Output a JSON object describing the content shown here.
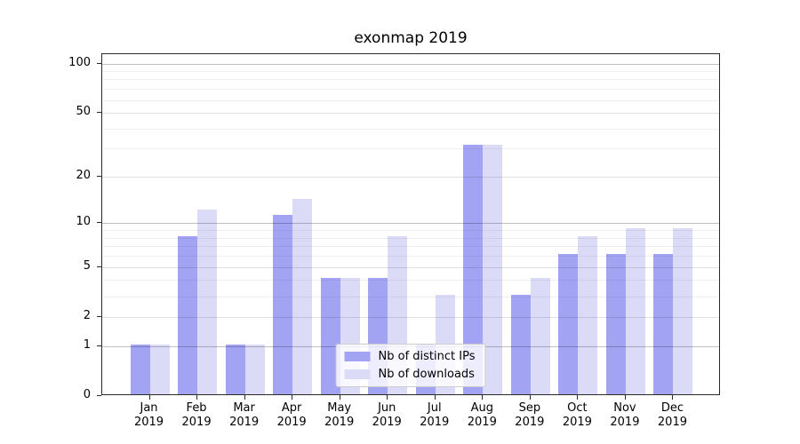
{
  "chart_data": {
    "type": "bar",
    "title": "exonmap 2019",
    "categories": [
      "Jan",
      "Feb",
      "Mar",
      "Apr",
      "May",
      "Jun",
      "Jul",
      "Aug",
      "Sep",
      "Oct",
      "Nov",
      "Dec"
    ],
    "year": "2019",
    "series": [
      {
        "name": "Nb of distinct IPs",
        "color": "#a3a3f3",
        "values": [
          1,
          8,
          1,
          11,
          4,
          4,
          1,
          31,
          3,
          6,
          6,
          6
        ]
      },
      {
        "name": "Nb of downloads",
        "color": "#dbdbf8",
        "values": [
          1,
          12,
          1,
          14,
          4,
          8,
          3,
          31,
          4,
          8,
          9,
          9
        ]
      }
    ],
    "xlabel": "",
    "ylabel": "",
    "yscale": "log(value+1)",
    "yticks": [
      0,
      1,
      2,
      5,
      10,
      20,
      50,
      100
    ],
    "ylim": [
      0,
      114
    ],
    "grid": true,
    "legend_position": "lower center"
  }
}
